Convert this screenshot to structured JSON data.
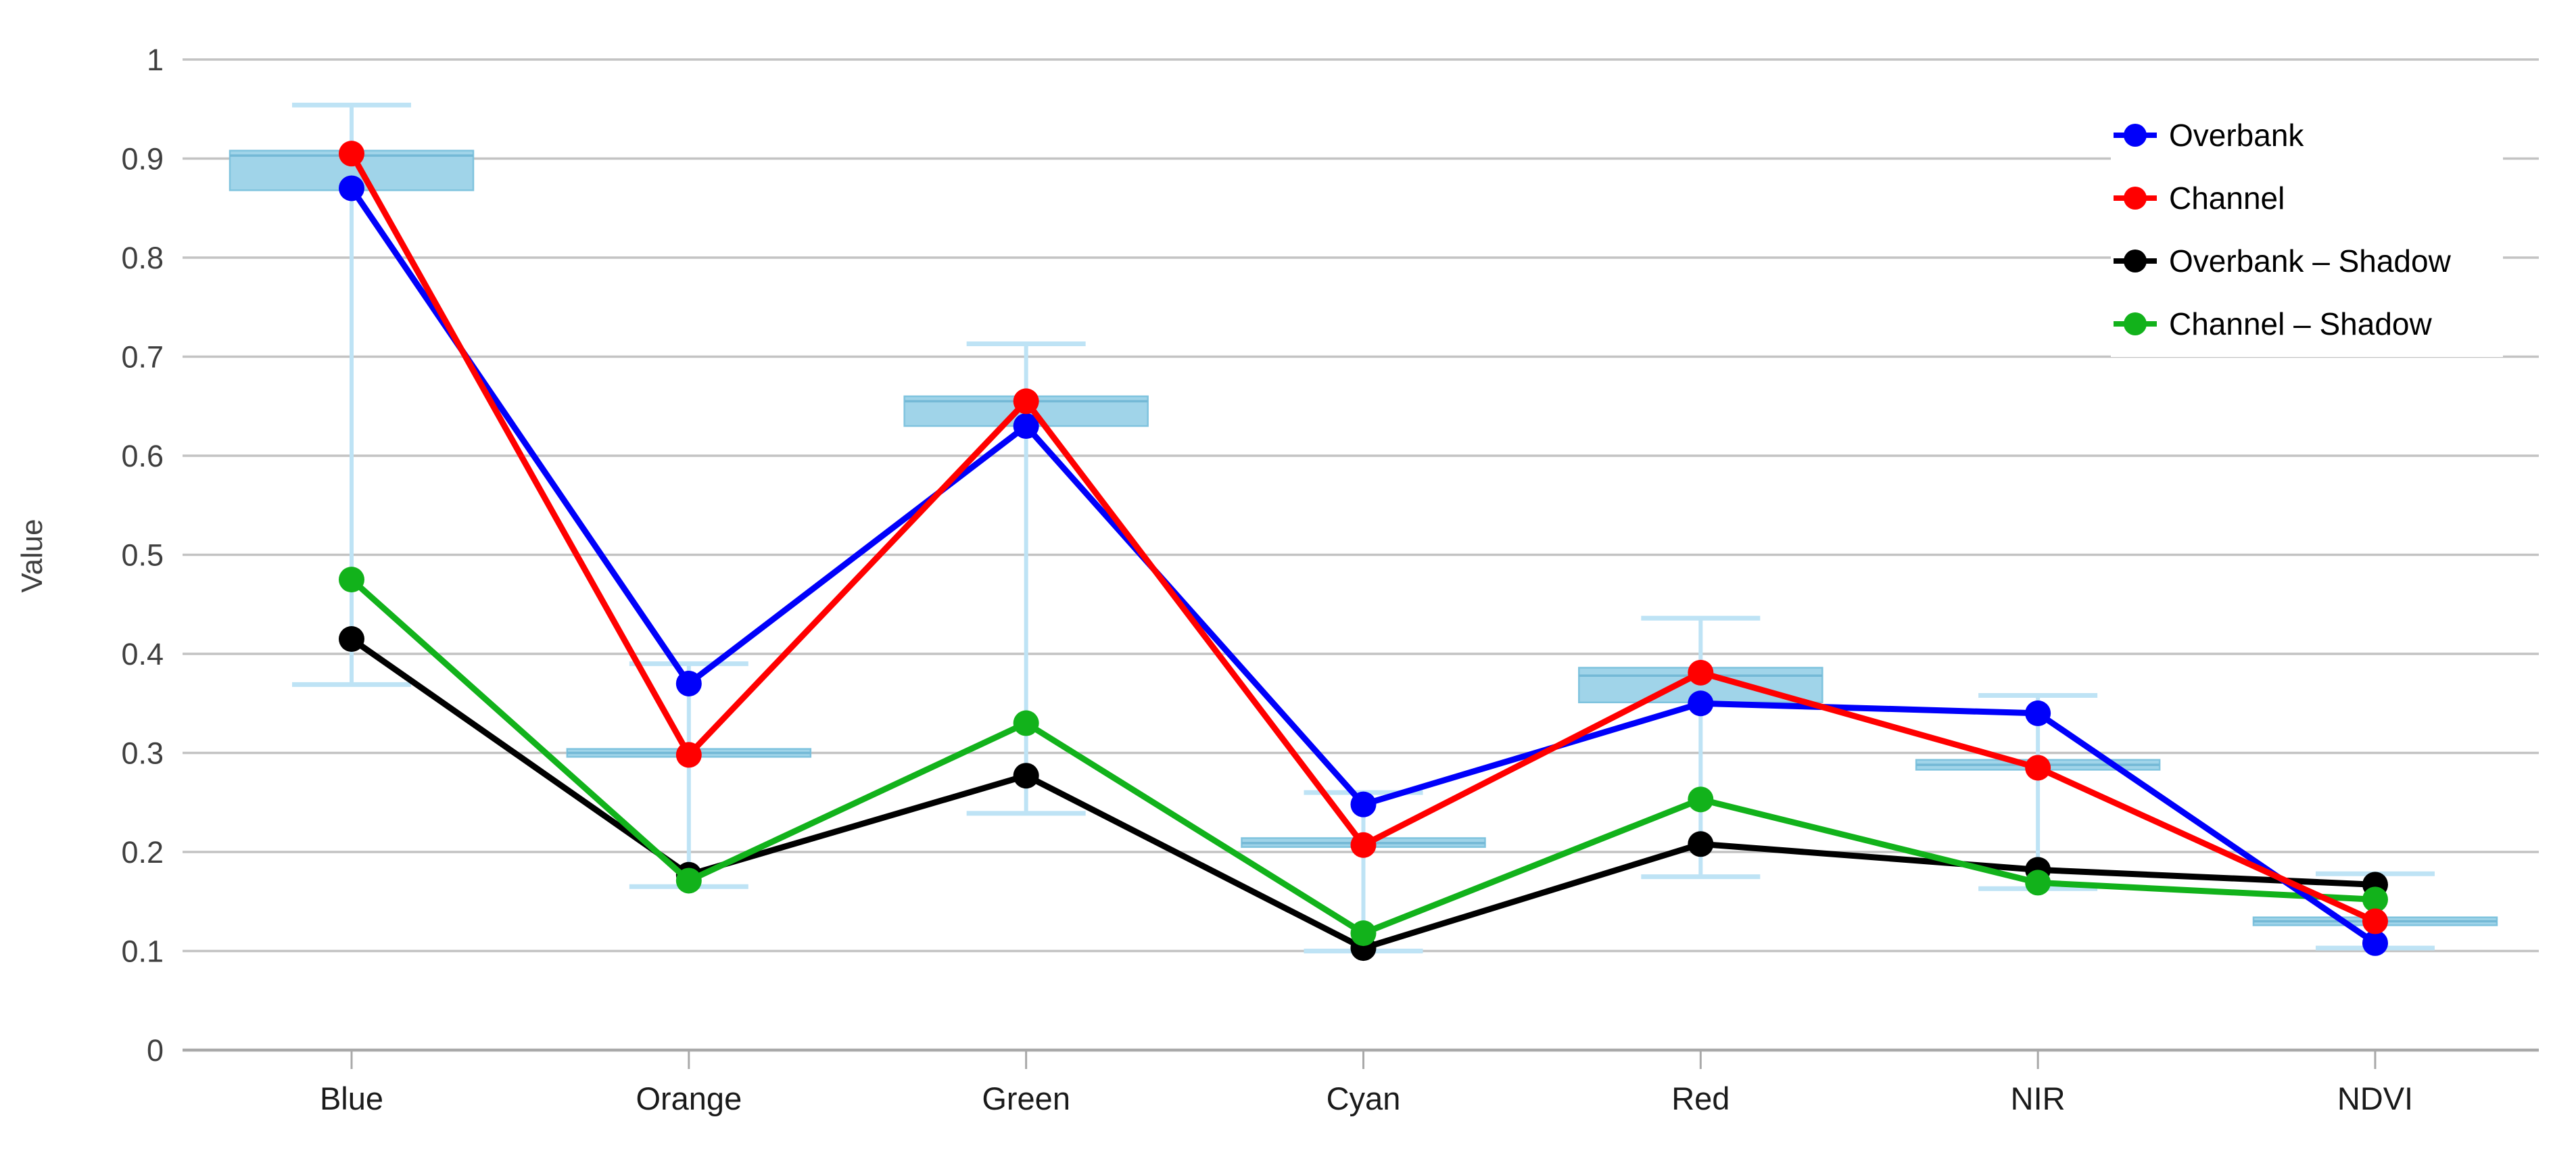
{
  "chart_data": {
    "type": "line",
    "title": "",
    "xlabel": "",
    "ylabel": "Value",
    "ylim": [
      0,
      1
    ],
    "grid": true,
    "legend_position": "top-right",
    "categories": [
      "Blue",
      "Orange",
      "Green",
      "Cyan",
      "Red",
      "NIR",
      "NDVI"
    ],
    "y_tick_labels": [
      "0",
      "0.1",
      "0.2",
      "0.3",
      "0.4",
      "0.5",
      "0.6",
      "0.7",
      "0.8",
      "0.9",
      "1"
    ],
    "y_tick_values": [
      0,
      0.1,
      0.2,
      0.3,
      0.4,
      0.5,
      0.6,
      0.7,
      0.8,
      0.9,
      1
    ],
    "series": [
      {
        "name": "Overbank",
        "color": "#0000fa",
        "values": [
          0.87,
          0.37,
          0.63,
          0.248,
          0.35,
          0.34,
          0.108
        ]
      },
      {
        "name": "Channel",
        "color": "#ff0000",
        "values": [
          0.905,
          0.298,
          0.655,
          0.207,
          0.381,
          0.285,
          0.13
        ]
      },
      {
        "name": "Overbank – Shadow",
        "color": "#000000",
        "values": [
          0.415,
          0.177,
          0.277,
          0.103,
          0.208,
          0.182,
          0.167
        ]
      },
      {
        "name": "Channel – Shadow",
        "color": "#12b21b",
        "values": [
          0.475,
          0.171,
          0.33,
          0.118,
          0.253,
          0.169,
          0.152
        ]
      }
    ],
    "draw_order": [
      2,
      3,
      0,
      1
    ],
    "boxplots": [
      {
        "category": "Blue",
        "whisker_low": 0.369,
        "box_low": 0.868,
        "median": 0.903,
        "box_high": 0.908,
        "whisker_high": 0.954
      },
      {
        "category": "Orange",
        "whisker_low": 0.165,
        "box_low": 0.296,
        "median": 0.3,
        "box_high": 0.304,
        "whisker_high": 0.39
      },
      {
        "category": "Green",
        "whisker_low": 0.239,
        "box_low": 0.63,
        "median": 0.655,
        "box_high": 0.66,
        "whisker_high": 0.713
      },
      {
        "category": "Cyan",
        "whisker_low": 0.1,
        "box_low": 0.205,
        "median": 0.209,
        "box_high": 0.214,
        "whisker_high": 0.26
      },
      {
        "category": "Red",
        "whisker_low": 0.175,
        "box_low": 0.351,
        "median": 0.378,
        "box_high": 0.386,
        "whisker_high": 0.436
      },
      {
        "category": "NIR",
        "whisker_low": 0.163,
        "box_low": 0.283,
        "median": 0.288,
        "box_high": 0.293,
        "whisker_high": 0.358
      },
      {
        "category": "NDVI",
        "whisker_low": 0.103,
        "box_low": 0.126,
        "median": 0.13,
        "box_high": 0.134,
        "whisker_high": 0.178
      }
    ],
    "colors": {
      "box_fill": "#a0d4e9",
      "box_edge": "#7fc3de",
      "median_line": "#74b9d6",
      "whisker_line": "#bee3f5",
      "gridline": "#c3c3c3",
      "axis_line": "#a9a9a9",
      "tick_label": "#3f3f3f",
      "category_label": "#1a1a1a",
      "legend_text": "#000000"
    }
  }
}
